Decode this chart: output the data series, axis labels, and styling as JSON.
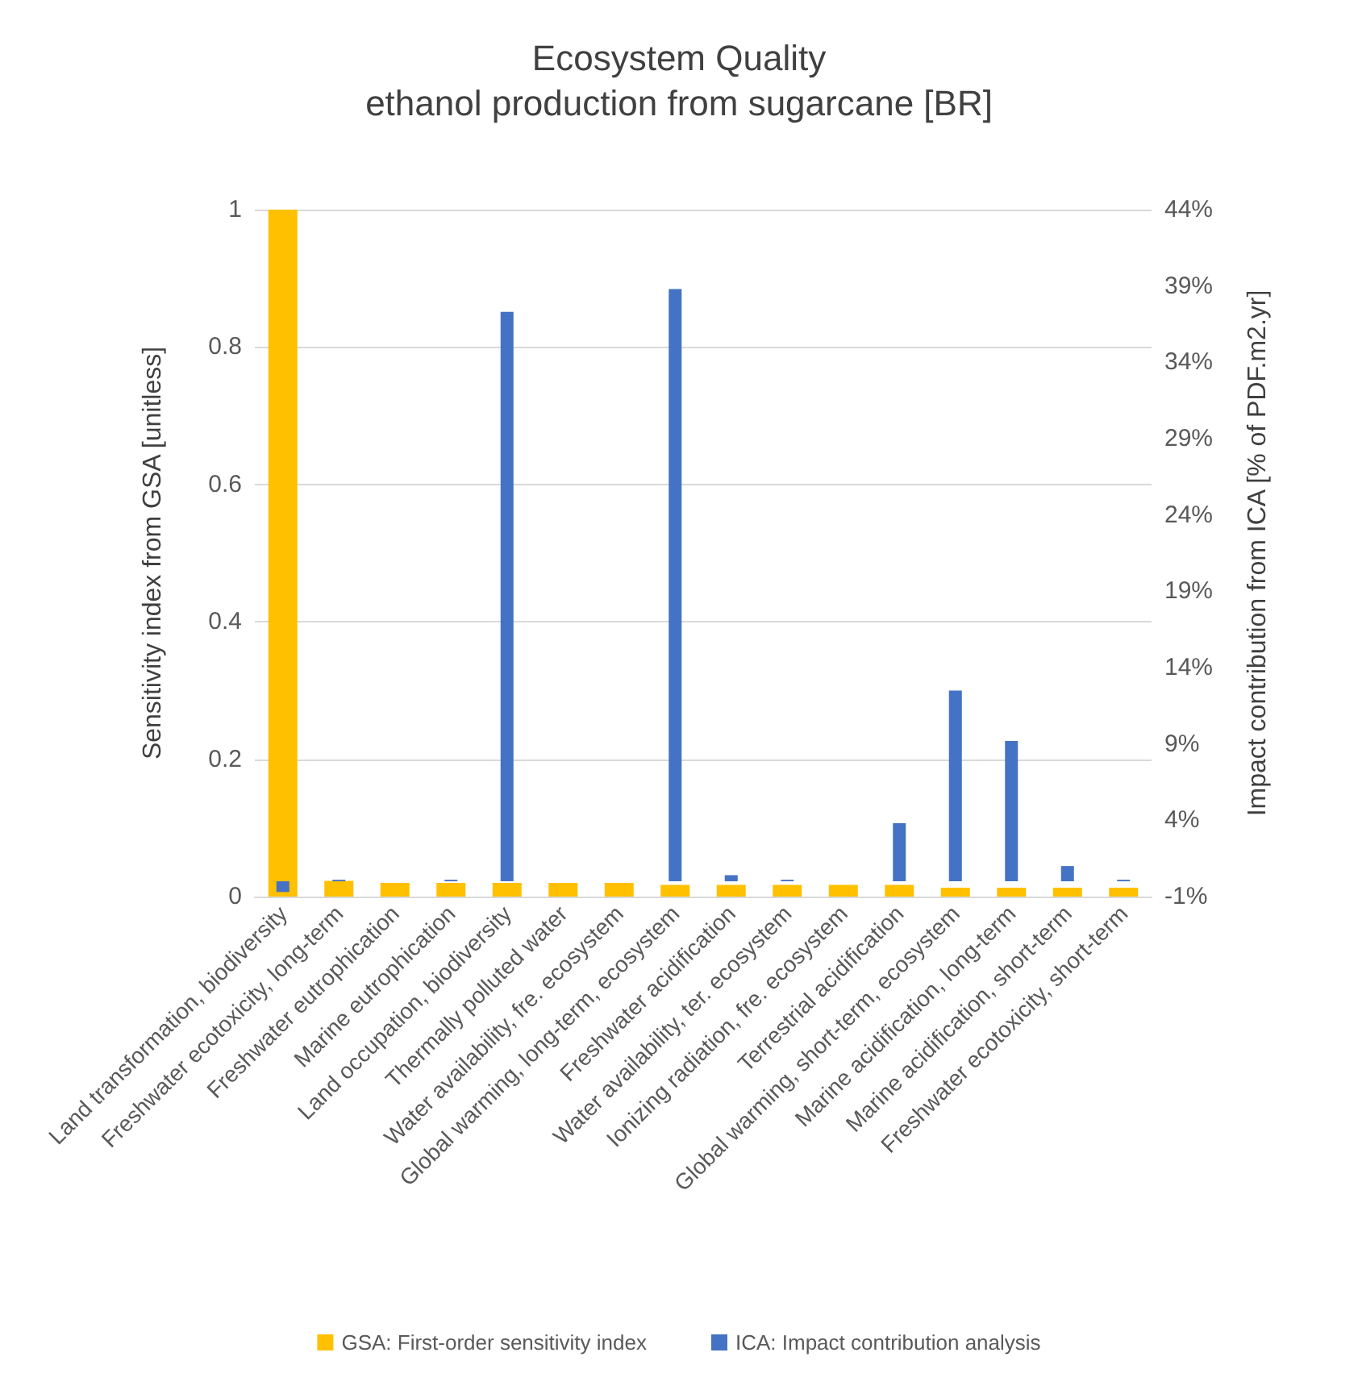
{
  "chart_data": {
    "type": "bar",
    "title": "Ecosystem Quality",
    "subtitle": "ethanol production from sugarcane [BR]",
    "ylabel": "Sensitivity index from GSA [unitless]",
    "y2label": "Impact contribution from ICA [% of PDF.m2.yr]",
    "categories": [
      "Land transformation, biodiversity",
      "Freshwater ecotoxicity, long-term",
      "Freshwater eutrophication",
      "Marine eutrophication",
      "Land occupation, biodiversity",
      "Thermally polluted water",
      "Water availability, fre. ecosystem",
      "Global warming, long-term, ecosystem",
      "Freshwater acidification",
      "Water availability, ter. ecosystem",
      "Ionizing radiation, fre. ecosystem",
      "Terrestrial acidification",
      "Global warming, short-term, ecosystem",
      "Marine acidification, long-term",
      "Marine acidification, short-term",
      "Freshwater ecotoxicity, short-term"
    ],
    "series": [
      {
        "name": "GSA: First-order sensitivity index",
        "color": "#ffc000",
        "values": [
          1.0,
          0.023,
          0.02,
          0.02,
          0.02,
          0.02,
          0.02,
          0.017,
          0.017,
          0.017,
          0.017,
          0.017,
          0.013,
          0.013,
          0.013,
          0.013
        ]
      },
      {
        "name": "ICA: Impact contribution analysis",
        "color": "#4472c4",
        "axis": "y2",
        "values": [
          -0.7,
          0.1,
          0.0,
          0.1,
          37.3,
          0.0,
          0.0,
          38.8,
          0.4,
          0.1,
          0.0,
          3.8,
          12.5,
          9.2,
          1.0,
          0.1
        ]
      }
    ],
    "ylim": [
      0,
      1
    ],
    "yticks": [
      0,
      0.2,
      0.4,
      0.6,
      0.8,
      1
    ],
    "y2lim": [
      -1,
      44
    ],
    "y2ticks": [
      {
        "value": -1,
        "label": "-1%"
      },
      {
        "value": 4,
        "label": "4%"
      },
      {
        "value": 9,
        "label": "9%"
      },
      {
        "value": 14,
        "label": "14%"
      },
      {
        "value": 19,
        "label": "19%"
      },
      {
        "value": 24,
        "label": "24%"
      },
      {
        "value": 29,
        "label": "29%"
      },
      {
        "value": 34,
        "label": "34%"
      },
      {
        "value": 39,
        "label": "39%"
      },
      {
        "value": 44,
        "label": "44%"
      }
    ],
    "grid": "y",
    "legend": "bottom"
  }
}
